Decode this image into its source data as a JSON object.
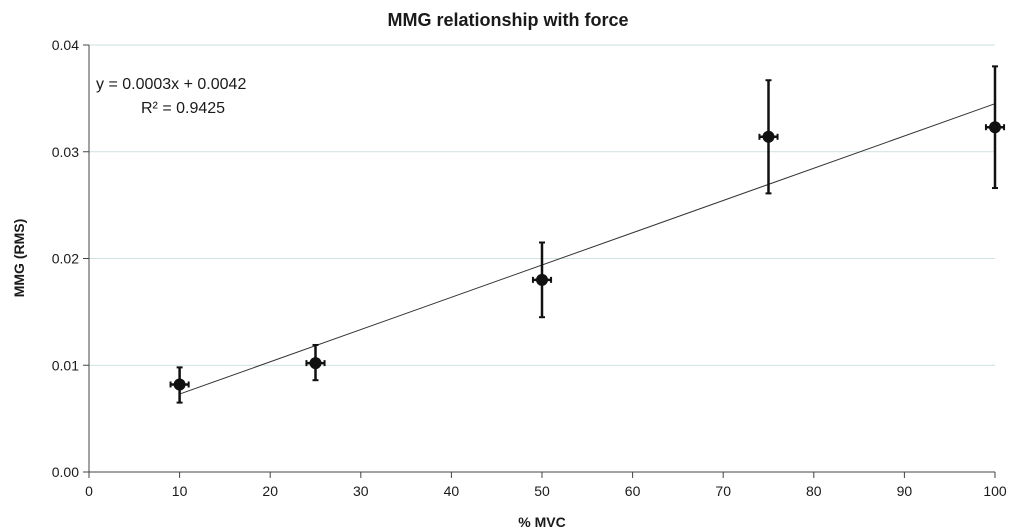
{
  "chart_data": {
    "type": "scatter",
    "title": "MMG relationship with force",
    "xlabel": "% MVC",
    "ylabel": "MMG (RMS)",
    "xlim": [
      0,
      100
    ],
    "ylim": [
      0,
      0.04
    ],
    "x_ticks": [
      "0",
      "10",
      "20",
      "30",
      "40",
      "50",
      "60",
      "70",
      "80",
      "90",
      "100"
    ],
    "y_ticks": [
      "0.00",
      "0.01",
      "0.02",
      "0.03",
      "0.04"
    ],
    "grid": "horizontal",
    "points": [
      {
        "x": 10,
        "y": 0.0082,
        "y_low": 0.0065,
        "y_high": 0.0098,
        "x_err": 1
      },
      {
        "x": 25,
        "y": 0.0102,
        "y_low": 0.0086,
        "y_high": 0.0119,
        "x_err": 1
      },
      {
        "x": 50,
        "y": 0.018,
        "y_low": 0.0145,
        "y_high": 0.0215,
        "x_err": 1
      },
      {
        "x": 75,
        "y": 0.0314,
        "y_low": 0.0261,
        "y_high": 0.0367,
        "x_err": 1
      },
      {
        "x": 100,
        "y": 0.0323,
        "y_low": 0.0266,
        "y_high": 0.038,
        "x_err": 1
      }
    ],
    "trendline": {
      "x_start": 10,
      "y_start": 0.0073,
      "x_end": 100,
      "y_end": 0.0345,
      "equation": "y = 0.0003x + 0.0042",
      "r_squared": "R² = 0.9425"
    }
  }
}
